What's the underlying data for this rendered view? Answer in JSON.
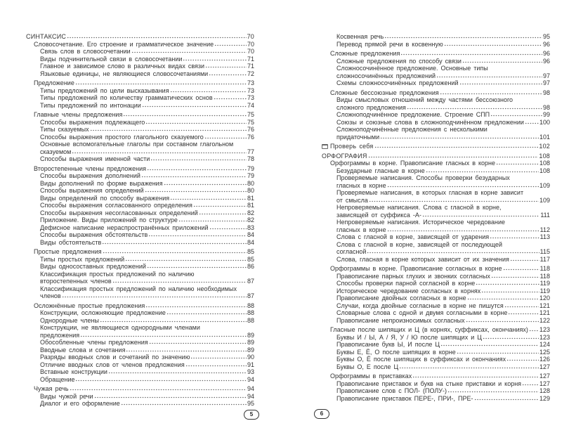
{
  "left_page": {
    "page_number": "5",
    "groups": [
      {
        "entries": [
          {
            "level": 0,
            "text": "СИНТАКСИС",
            "page": "70"
          },
          {
            "level": 1,
            "text": "Словосочетание. Его строение и грамматическое значение",
            "page": "70"
          },
          {
            "level": 2,
            "text": "Связь слов в словосочетании",
            "page": "70"
          },
          {
            "level": 2,
            "text": "Виды подчинительной связи в словосочетании",
            "page": "71"
          },
          {
            "level": 2,
            "text": "Главное и зависимое слово в различных видах связи",
            "page": "71"
          },
          {
            "level": 2,
            "text": "Языковые единицы, не являющиеся словосочетаниями",
            "page": "72"
          }
        ]
      },
      {
        "entries": [
          {
            "level": 1,
            "text": "Предложение",
            "page": "73"
          },
          {
            "level": 2,
            "text": "Типы предложений по цели высказывания",
            "page": "73"
          },
          {
            "level": 2,
            "text": "Типы предложений по количеству грамматических основ",
            "page": "73"
          },
          {
            "level": 2,
            "text": "Типы предложений по интонации",
            "page": "74"
          }
        ]
      },
      {
        "entries": [
          {
            "level": 1,
            "text": "Главные члены предложения",
            "page": "75"
          },
          {
            "level": 2,
            "text": "Способы выражения подлежащего",
            "page": "75"
          },
          {
            "level": 2,
            "text": "Типы сказуемых",
            "page": "76"
          },
          {
            "level": 2,
            "text": "Способы выражения простого глагольного сказуемого",
            "page": "76"
          },
          {
            "level": 2,
            "text": "Основные вспомогательные глаголы при составном глагольном",
            "cont": "сказуемом",
            "page": "77"
          },
          {
            "level": 2,
            "text": "Способы выражения именной части",
            "page": "78"
          }
        ]
      },
      {
        "entries": [
          {
            "level": 1,
            "text": "Второстепенные члены предложения",
            "page": "79"
          },
          {
            "level": 2,
            "text": "Способы выражения дополнений",
            "page": "79"
          },
          {
            "level": 2,
            "text": "Виды дополнений по форме выражения",
            "page": "80"
          },
          {
            "level": 2,
            "text": "Способы выражения определений",
            "page": "80"
          },
          {
            "level": 2,
            "text": "Виды определений по способу выражения",
            "page": "81"
          },
          {
            "level": 2,
            "text": "Способы выражения согласованного определения",
            "page": "81"
          },
          {
            "level": 2,
            "text": "Способы выражения несогласованных определений",
            "page": "82"
          },
          {
            "level": 2,
            "text": "Приложение. Виды приложений по структуре",
            "page": "82"
          },
          {
            "level": 2,
            "text": "Дефисное написание нераспространённых приложений",
            "page": "83"
          },
          {
            "level": 2,
            "text": "Способы выражения обстоятельств",
            "page": "84"
          },
          {
            "level": 2,
            "text": "Виды обстоятельств",
            "page": "84"
          }
        ]
      },
      {
        "entries": [
          {
            "level": 1,
            "text": "Простые предложения",
            "page": "85"
          },
          {
            "level": 2,
            "text": "Типы простых предложений",
            "page": "85"
          },
          {
            "level": 2,
            "text": "Виды односоставных предложений",
            "page": "86"
          },
          {
            "level": 2,
            "text": "Классификация простых предложений по наличию",
            "cont": "второстепенных членов",
            "page": "87"
          },
          {
            "level": 2,
            "text": "Классификация простых предложений по наличию необходимых",
            "cont": "членов",
            "page": "87"
          }
        ]
      },
      {
        "entries": [
          {
            "level": 1,
            "text": "Осложнённые простые предложения",
            "page": "88"
          },
          {
            "level": 2,
            "text": "Конструкции, осложняющие предложение",
            "page": "88"
          },
          {
            "level": 2,
            "text": "Однородные члены",
            "page": "88"
          },
          {
            "level": 2,
            "text": "Конструкции, не являющиеся однородными членами",
            "cont": "предложения",
            "page": "89"
          },
          {
            "level": 2,
            "text": "Обособленные члены предложения",
            "page": "89"
          },
          {
            "level": 2,
            "text": "Вводные слова и сочетания",
            "page": "89"
          },
          {
            "level": 2,
            "text": "Разряды вводных слов и сочетаний по значению",
            "page": "90"
          },
          {
            "level": 2,
            "text": "Отличие вводных слов от членов предложения",
            "page": "91"
          },
          {
            "level": 2,
            "text": "Вставные конструкции",
            "page": "93"
          },
          {
            "level": 2,
            "text": "Обращение",
            "page": "94"
          }
        ]
      },
      {
        "entries": [
          {
            "level": 1,
            "text": "Чужая речь",
            "page": "94"
          },
          {
            "level": 2,
            "text": "Виды чужой речи",
            "page": "94"
          },
          {
            "level": 2,
            "text": "Диалог и его оформление",
            "page": "95"
          }
        ]
      }
    ]
  },
  "right_page": {
    "page_number": "6",
    "groups": [
      {
        "entries": [
          {
            "level": 2,
            "text": "Косвенная речь",
            "page": "95"
          },
          {
            "level": 2,
            "text": "Перевод прямой речи в косвенную",
            "page": "96"
          }
        ]
      },
      {
        "entries": [
          {
            "level": 1,
            "text": "Сложные предложения",
            "page": "96"
          },
          {
            "level": 2,
            "text": "Сложные предложения по способу связи",
            "page": "96"
          },
          {
            "level": 2,
            "text": "Сложносочинённое предложение. Основные типы",
            "cont": "сложносочинённых предложений",
            "page": "97"
          },
          {
            "level": 2,
            "text": "Схемы сложносочинённых предложений",
            "page": "97"
          }
        ]
      },
      {
        "entries": [
          {
            "level": 1,
            "text": "Сложные бессоюзные предложения",
            "page": "98"
          },
          {
            "level": 2,
            "text": "Виды смысловых отношений между частями бессоюзного",
            "cont": "сложного предложения",
            "page": "98"
          },
          {
            "level": 2,
            "text": "Сложноподчинённое предложение. Строение СПП",
            "page": "99"
          },
          {
            "level": 2,
            "text": "Союзы и союзные слова в сложноподчинённом предложении",
            "page": "100"
          },
          {
            "level": 2,
            "text": "Сложноподчинённые предложения с несколькими",
            "cont": "придаточными",
            "page": "101"
          }
        ]
      },
      {
        "entries": [
          {
            "level": 0,
            "icon": "self-check-icon",
            "text": "Проверь себя",
            "page": "102"
          }
        ]
      },
      {
        "big_gap": true,
        "entries": [
          {
            "level": 0,
            "text": "ОРФОГРАФИЯ",
            "page": "108"
          },
          {
            "level": 1,
            "text": "Орфограммы в корне. Правописание гласных в корне",
            "page": "108"
          },
          {
            "level": 2,
            "text": "Безударные гласные в корне",
            "page": "108"
          },
          {
            "level": 2,
            "text": "Проверяемые написания. Способы проверки безударных",
            "cont": "гласных в корне",
            "page": "109"
          },
          {
            "level": 2,
            "text": "Проверяемые написания, в которых гласная в корне зависит",
            "cont": "от смысла",
            "page": "109"
          },
          {
            "level": 2,
            "text": "Непроверяемые написания. Слова с гласной в корне,",
            "cont": "зависящей от суффикса -А-",
            "page": "111"
          },
          {
            "level": 2,
            "text": "Непроверяемые написания. Историческое чередование",
            "cont": "гласных в корне",
            "page": "112"
          },
          {
            "level": 2,
            "text": "Слова с гласной в корне, зависящей от ударения",
            "page": "113"
          },
          {
            "level": 2,
            "text": "Слова с гласной в корне, зависящей от последующей",
            "cont": "согласной",
            "page": "115"
          },
          {
            "level": 2,
            "text": "Слова, гласная в корне которых зависит от их значения",
            "page": "117"
          }
        ]
      },
      {
        "entries": [
          {
            "level": 1,
            "text": "Орфограммы в корне. Правописание согласных в корне",
            "page": "118"
          },
          {
            "level": 2,
            "text": "Правописание парных глухих и звонких согласных",
            "page": "118"
          },
          {
            "level": 2,
            "text": "Способы проверки парной согласной в корне",
            "page": "119"
          },
          {
            "level": 2,
            "text": "Историческое чередование согласных в корнях",
            "page": "119"
          },
          {
            "level": 2,
            "text": "Правописание двойных согласных в корне",
            "page": "120"
          },
          {
            "level": 2,
            "text": "Случаи, когда двойные согласные в корне не пишутся",
            "page": "121"
          },
          {
            "level": 2,
            "text": "Словарные слова с одной и двумя согласными в корне",
            "page": "121"
          },
          {
            "level": 2,
            "text": "Правописание непроизносимых согласных",
            "page": "122"
          }
        ]
      },
      {
        "entries": [
          {
            "level": 1,
            "text": "Гласные после шипящих и Ц (в корнях, суффиксах, окончаниях)",
            "page": "123"
          },
          {
            "level": 2,
            "text": "Буквы И / Ы, А / Я, У / Ю после шипящих и Ц",
            "page": "123"
          },
          {
            "level": 2,
            "text": "Правописание букв Ы, И после Ц",
            "page": "124"
          },
          {
            "level": 2,
            "text": "Буквы Е, Ё, О после шипящих в корне",
            "page": "125"
          },
          {
            "level": 2,
            "text": "Буквы О, Ё после шипящих в суффиксах и окончаниях",
            "page": "126"
          },
          {
            "level": 2,
            "text": "Буквы О, Е после Ц",
            "page": "127"
          }
        ]
      },
      {
        "entries": [
          {
            "level": 1,
            "text": "Орфограммы в приставках",
            "page": "127"
          },
          {
            "level": 2,
            "text": "Правописание приставок и букв на стыке приставки и корня",
            "page": "127"
          },
          {
            "level": 2,
            "text": "Правописание слов с ПОЛ- (ПОЛУ-)",
            "page": "128"
          },
          {
            "level": 2,
            "text": "Правописание приставок ПЕРЕ-, ПРИ-, ПРЕ-",
            "page": "129"
          }
        ]
      }
    ]
  }
}
